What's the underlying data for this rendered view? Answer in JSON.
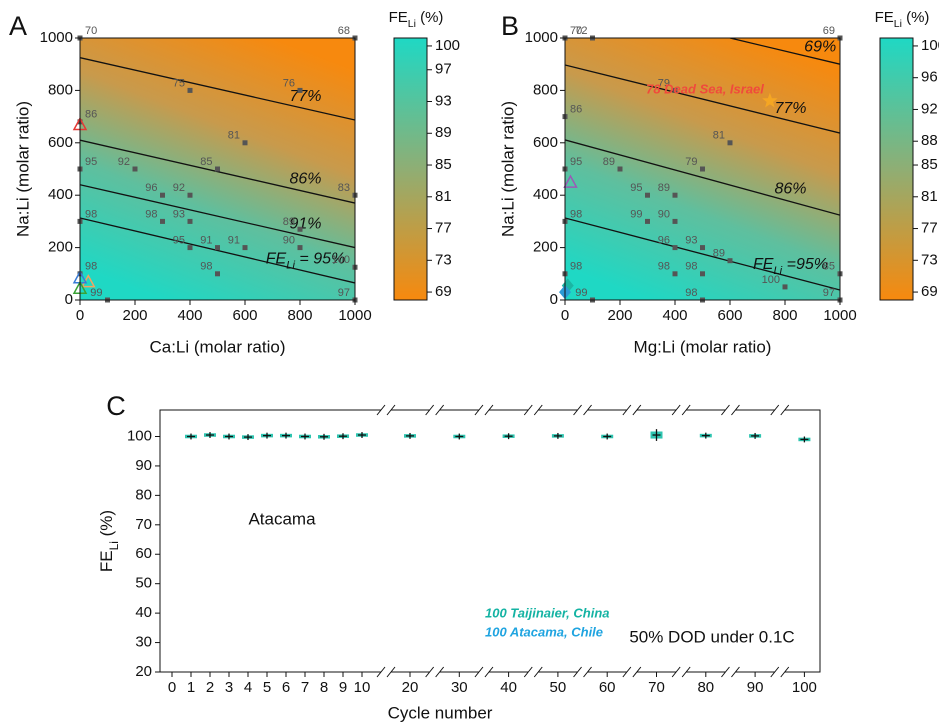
{
  "chart_data": [
    {
      "type": "contour",
      "panel": "A",
      "xlabel": "Ca:Li (molar ratio)",
      "ylabel": "Na:Li (molar ratio)",
      "xlim": [
        0,
        1000
      ],
      "ylim": [
        0,
        1000
      ],
      "xticks": [
        0,
        200,
        400,
        600,
        800,
        1000
      ],
      "yticks": [
        0,
        200,
        400,
        600,
        800,
        1000
      ],
      "colorbar": {
        "title": {
          "main": "FE",
          "sub": "Li",
          "unit": " (%)"
        },
        "lim": [
          68,
          101
        ],
        "ticks": [
          100,
          97,
          93,
          89,
          85,
          81,
          77,
          73,
          69
        ]
      },
      "contours": [
        {
          "level": 77,
          "label": "77%",
          "x": [
            0,
            1000
          ],
          "y": [
            925,
            687
          ]
        },
        {
          "level": 86,
          "label": "86%",
          "x": [
            0,
            1000
          ],
          "y": [
            610,
            370
          ]
        },
        {
          "level": 91,
          "label": "91%",
          "x": [
            0,
            1000
          ],
          "y": [
            440,
            200
          ]
        },
        {
          "level": 95,
          "label_main": "FE",
          "label_sub": "Li",
          "label": " = 95%",
          "x": [
            0,
            1000
          ],
          "y": [
            313,
            65
          ]
        }
      ],
      "points": {
        "x": [
          0,
          1000,
          400,
          800,
          0,
          0,
          200,
          500,
          600,
          1000,
          300,
          400,
          300,
          400,
          0,
          800,
          400,
          500,
          600,
          800,
          1000,
          500,
          0,
          1000,
          100
        ],
        "y": [
          1000,
          1000,
          800,
          800,
          680,
          500,
          500,
          500,
          600,
          400,
          400,
          400,
          300,
          300,
          300,
          270,
          200,
          200,
          200,
          200,
          125,
          100,
          100,
          0,
          0
        ],
        "values": [
          70,
          68,
          75,
          76,
          86,
          95,
          92,
          85,
          81,
          83,
          96,
          92,
          98,
          93,
          98,
          89,
          95,
          91,
          91,
          90,
          100,
          98,
          98,
          97,
          99
        ]
      },
      "markers": [
        {
          "shape": "triangle",
          "color": "#e53935",
          "x": 0,
          "y": 670
        },
        {
          "shape": "triangle",
          "color": "#f4a460",
          "x": 30,
          "y": 70
        },
        {
          "shape": "triangle",
          "color": "#3a7bd5",
          "x": 0,
          "y": 85
        },
        {
          "shape": "triangle",
          "color": "#3aa335",
          "x": 0,
          "y": 45
        }
      ]
    },
    {
      "type": "contour",
      "panel": "B",
      "xlabel": "Mg:Li (molar ratio)",
      "ylabel": "Na:Li (molar ratio)",
      "xlim": [
        0,
        1000
      ],
      "ylim": [
        0,
        1000
      ],
      "xticks": [
        0,
        200,
        400,
        600,
        800,
        1000
      ],
      "yticks": [
        0,
        200,
        400,
        600,
        800,
        1000
      ],
      "colorbar": {
        "title": {
          "main": "FE",
          "sub": "Li",
          "unit": " (%)"
        },
        "lim": [
          68,
          101
        ],
        "ticks": [
          100,
          96,
          92,
          88,
          85,
          81,
          77,
          73,
          69
        ]
      },
      "contours": [
        {
          "level": 69,
          "label": "69%",
          "x": [
            600,
            1000
          ],
          "y": [
            1000,
            900
          ]
        },
        {
          "level": 77,
          "label": "77%",
          "x": [
            0,
            1000
          ],
          "y": [
            897,
            637
          ]
        },
        {
          "level": 86,
          "label": "86%",
          "x": [
            0,
            1000
          ],
          "y": [
            611,
            324
          ]
        },
        {
          "level": 95,
          "label_main": "FE",
          "label_sub": "Li",
          "label": " =95%",
          "x": [
            0,
            1000
          ],
          "y": [
            313,
            38
          ]
        }
      ],
      "points": {
        "x": [
          0,
          100,
          1000,
          400,
          600,
          0,
          200,
          500,
          0,
          300,
          400,
          300,
          400,
          400,
          500,
          600,
          0,
          400,
          500,
          0,
          100,
          500,
          800,
          1000,
          1000
        ],
        "y": [
          1000,
          1000,
          1000,
          800,
          600,
          700,
          500,
          500,
          500,
          400,
          400,
          300,
          300,
          200,
          200,
          150,
          300,
          100,
          100,
          100,
          0,
          0,
          50,
          100,
          0
        ],
        "values": [
          70,
          72,
          69,
          79,
          81,
          86,
          89,
          79,
          95,
          95,
          89,
          99,
          90,
          96,
          93,
          89,
          98,
          98,
          98,
          98,
          99,
          98,
          100,
          85,
          97
        ]
      },
      "markers": [
        {
          "shape": "triangle",
          "color": "#9b59b6",
          "x": 20,
          "y": 450
        },
        {
          "shape": "star",
          "color": "#f5a623",
          "x": 745,
          "y": 760
        },
        {
          "shape": "diamond",
          "color": "#1cb5a3",
          "x": 10,
          "y": 55
        },
        {
          "shape": "diamond",
          "color": "#2b9bd6",
          "x": 0,
          "y": 30
        }
      ],
      "annotations": [
        {
          "text": "78 Dead Sea, Israel",
          "color": "#f04a3c"
        },
        {
          "text": "100 Taijinaier, China",
          "color": "#14b3a3"
        },
        {
          "text": "100 Atacama, Chile",
          "color": "#1fa4e0"
        }
      ]
    },
    {
      "type": "box",
      "panel": "C",
      "xlabel": "Cycle number",
      "ylabel": {
        "main": "FE",
        "sub": "Li",
        "unit": " (%)"
      },
      "categories": [
        "0",
        "1",
        "2",
        "3",
        "4",
        "5",
        "6",
        "7",
        "8",
        "9",
        "10",
        "20",
        "30",
        "40",
        "50",
        "60",
        "70",
        "80",
        "90",
        "100"
      ],
      "values": [
        null,
        100,
        100.5,
        100,
        99.8,
        100.3,
        100.3,
        100,
        99.9,
        100.1,
        100.5,
        100.2,
        100,
        100.1,
        100.2,
        100,
        100.5,
        100.3,
        100.2,
        99
      ],
      "errors": [
        null,
        1,
        1,
        1,
        1,
        1,
        1,
        1,
        1,
        1,
        1,
        1,
        1,
        1,
        1,
        1,
        2,
        1,
        1,
        1
      ],
      "color": "#2ec4b0",
      "ylim": [
        20,
        109
      ],
      "yticks": [
        20,
        30,
        40,
        50,
        60,
        70,
        80,
        90,
        100
      ],
      "annotations": [
        "Atacama",
        "50% DOD under 0.1C"
      ]
    }
  ]
}
